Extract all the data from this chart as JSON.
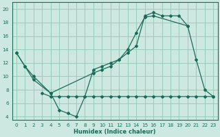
{
  "xlabel": "Humidex (Indice chaleur)",
  "bg_color": "#cce8e0",
  "grid_color": "#99ccbb",
  "line_color": "#1a6b5a",
  "xlim": [
    -0.5,
    23.5
  ],
  "ylim": [
    3.5,
    21.0
  ],
  "yticks": [
    4,
    6,
    8,
    10,
    12,
    14,
    16,
    18,
    20
  ],
  "xticks": [
    0,
    1,
    2,
    3,
    4,
    5,
    6,
    7,
    8,
    9,
    10,
    11,
    12,
    13,
    14,
    15,
    16,
    17,
    18,
    19,
    20,
    21,
    22,
    23
  ],
  "curve1_x": [
    0,
    1,
    2,
    4,
    5,
    6,
    7,
    8,
    9,
    10,
    11,
    12,
    13,
    14,
    15,
    16,
    20,
    21,
    22,
    23
  ],
  "curve1_y": [
    13.5,
    11.5,
    9.5,
    7.5,
    5.0,
    4.5,
    4.0,
    7.0,
    11.0,
    11.5,
    12.0,
    12.5,
    14.0,
    16.5,
    18.8,
    19.0,
    17.5,
    12.5,
    8.0,
    7.0
  ],
  "curve2_x": [
    0,
    1,
    2,
    4,
    9,
    10,
    11,
    12,
    13,
    14,
    15,
    16,
    17,
    18,
    19,
    20
  ],
  "curve2_y": [
    13.5,
    11.5,
    10.0,
    7.5,
    10.5,
    11.0,
    11.5,
    12.5,
    13.5,
    14.5,
    19.0,
    19.5,
    19.0,
    19.0,
    19.0,
    17.5
  ],
  "curve3_x": [
    3,
    4,
    5,
    6,
    7,
    8,
    9,
    10,
    11,
    12,
    13,
    14,
    15,
    16,
    17,
    18,
    19,
    20,
    21,
    22,
    23
  ],
  "curve3_y": [
    7.5,
    7.0,
    7.0,
    7.0,
    7.0,
    7.0,
    7.0,
    7.0,
    7.0,
    7.0,
    7.0,
    7.0,
    7.0,
    7.0,
    7.0,
    7.0,
    7.0,
    7.0,
    7.0,
    7.0,
    7.0
  ]
}
